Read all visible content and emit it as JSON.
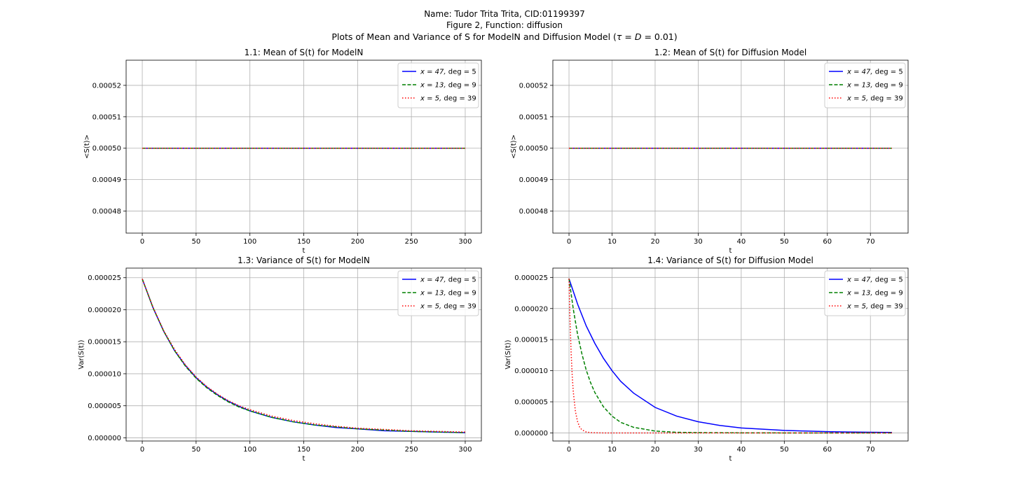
{
  "suptitle": {
    "line1": "Name: Tudor Trita Trita, CID:01199397",
    "line2": "Figure 2, Function: diffusion",
    "line3": "Plots of Mean and Variance of S for ModelN and Diffusion Model (τ = D = 0.01)"
  },
  "legend_labels": [
    "x = 47, deg = 5",
    "x = 13, deg = 9",
    "x = 5, deg = 39"
  ],
  "colors": {
    "blue": "#0000ff",
    "green": "#008000",
    "red": "#ff0000",
    "grid": "#b0b0b0"
  },
  "chart_data": [
    {
      "type": "line",
      "title": "1.1: Mean of S(t) for ModelN",
      "xlabel": "t",
      "ylabel": "<S(t)>",
      "xlim": [
        -15,
        315
      ],
      "ylim": [
        0.000473,
        0.000528
      ],
      "xticks": [
        0,
        50,
        100,
        150,
        200,
        250,
        300
      ],
      "xtick_labels": [
        "0",
        "50",
        "100",
        "150",
        "200",
        "250",
        "300"
      ],
      "yticks": [
        0.00048,
        0.00049,
        0.0005,
        0.00051,
        0.00052
      ],
      "ytick_labels": [
        "0.00048",
        "0.00049",
        "0.00050",
        "0.00051",
        "0.00052"
      ],
      "grid": true,
      "legend": "top-right",
      "series": [
        {
          "name": "x = 47, deg = 5",
          "color": "#0000ff",
          "style": "solid",
          "x": [
            0,
            50,
            100,
            150,
            200,
            250,
            300
          ],
          "y": [
            0.0005,
            0.0005,
            0.0005,
            0.0005,
            0.0005,
            0.0005,
            0.0005
          ]
        },
        {
          "name": "x = 13, deg = 9",
          "color": "#008000",
          "style": "dashed",
          "x": [
            0,
            50,
            100,
            150,
            200,
            250,
            300
          ],
          "y": [
            0.0005,
            0.0005,
            0.0005,
            0.0005,
            0.0005,
            0.0005,
            0.0005
          ]
        },
        {
          "name": "x = 5, deg = 39",
          "color": "#ff0000",
          "style": "dotted",
          "x": [
            0,
            50,
            100,
            150,
            200,
            250,
            300
          ],
          "y": [
            0.0005,
            0.0005,
            0.0005,
            0.0005,
            0.0005,
            0.0005,
            0.0005
          ]
        }
      ]
    },
    {
      "type": "line",
      "title": "1.2: Mean of S(t) for Diffusion Model",
      "xlabel": "t",
      "ylabel": "<S(t)>",
      "xlim": [
        -3.75,
        78.75
      ],
      "ylim": [
        0.000473,
        0.000528
      ],
      "xticks": [
        0,
        10,
        20,
        30,
        40,
        50,
        60,
        70
      ],
      "xtick_labels": [
        "0",
        "10",
        "20",
        "30",
        "40",
        "50",
        "60",
        "70"
      ],
      "yticks": [
        0.00048,
        0.00049,
        0.0005,
        0.00051,
        0.00052
      ],
      "ytick_labels": [
        "0.00048",
        "0.00049",
        "0.00050",
        "0.00051",
        "0.00052"
      ],
      "grid": true,
      "legend": "top-right",
      "series": [
        {
          "name": "x = 47, deg = 5",
          "color": "#0000ff",
          "style": "solid",
          "x": [
            0,
            25,
            50,
            75
          ],
          "y": [
            0.0005,
            0.0005,
            0.0005,
            0.0005
          ]
        },
        {
          "name": "x = 13, deg = 9",
          "color": "#008000",
          "style": "dashed",
          "x": [
            0,
            25,
            50,
            75
          ],
          "y": [
            0.0005,
            0.0005,
            0.0005,
            0.0005
          ]
        },
        {
          "name": "x = 5, deg = 39",
          "color": "#ff0000",
          "style": "dotted",
          "x": [
            0,
            25,
            50,
            75
          ],
          "y": [
            0.0005,
            0.0005,
            0.0005,
            0.0005
          ]
        }
      ]
    },
    {
      "type": "line",
      "title": "1.3: Variance of S(t) for ModelN",
      "xlabel": "t",
      "ylabel": "Var(S(t))",
      "xlim": [
        -15,
        315
      ],
      "ylim": [
        -5e-07,
        2.65e-05
      ],
      "xticks": [
        0,
        50,
        100,
        150,
        200,
        250,
        300
      ],
      "xtick_labels": [
        "0",
        "50",
        "100",
        "150",
        "200",
        "250",
        "300"
      ],
      "yticks": [
        0,
        5e-06,
        1e-05,
        1.5e-05,
        2e-05,
        2.5e-05
      ],
      "ytick_labels": [
        "0.000000",
        "0.000005",
        "0.000010",
        "0.000015",
        "0.000020",
        "0.000025"
      ],
      "grid": true,
      "legend": "top-right",
      "series": [
        {
          "name": "x = 47, deg = 5",
          "color": "#0000ff",
          "style": "solid",
          "x": [
            0,
            10,
            20,
            30,
            40,
            50,
            60,
            70,
            80,
            90,
            100,
            120,
            140,
            160,
            180,
            200,
            225,
            250,
            275,
            300
          ],
          "y": [
            2.48e-05,
            2.03e-05,
            1.66e-05,
            1.36e-05,
            1.13e-05,
            9.4e-06,
            7.9e-06,
            6.7e-06,
            5.7e-06,
            4.9e-06,
            4.2e-06,
            3.2e-06,
            2.5e-06,
            2e-06,
            1.6e-06,
            1.4e-06,
            1.1e-06,
            1e-06,
            9e-07,
            8e-07
          ]
        },
        {
          "name": "x = 13, deg = 9",
          "color": "#008000",
          "style": "dashed",
          "x": [
            0,
            10,
            20,
            30,
            40,
            50,
            60,
            70,
            80,
            90,
            100,
            120,
            140,
            160,
            180,
            200,
            225,
            250,
            275,
            300
          ],
          "y": [
            2.48e-05,
            2.03e-05,
            1.66e-05,
            1.36e-05,
            1.12e-05,
            9.3e-06,
            7.8e-06,
            6.6e-06,
            5.6e-06,
            4.8e-06,
            4.2e-06,
            3.2e-06,
            2.5e-06,
            2e-06,
            1.7e-06,
            1.4e-06,
            1.2e-06,
            1e-06,
            9e-07,
            8e-07
          ]
        },
        {
          "name": "x = 5, deg = 39",
          "color": "#ff0000",
          "style": "dotted",
          "x": [
            0,
            10,
            20,
            30,
            40,
            50,
            60,
            70,
            80,
            90,
            100,
            120,
            140,
            160,
            180,
            200,
            225,
            250,
            275,
            300
          ],
          "y": [
            2.48e-05,
            2.04e-05,
            1.67e-05,
            1.38e-05,
            1.14e-05,
            9.5e-06,
            8e-06,
            6.8e-06,
            5.8e-06,
            5e-06,
            4.4e-06,
            3.4e-06,
            2.7e-06,
            2.2e-06,
            1.8e-06,
            1.5e-06,
            1.3e-06,
            1.1e-06,
            1e-06,
            9e-07
          ]
        }
      ]
    },
    {
      "type": "line",
      "title": "1.4: Variance of S(t) for Diffusion Model",
      "xlabel": "t",
      "ylabel": "Var(S(t))",
      "xlim": [
        -3.75,
        78.75
      ],
      "ylim": [
        -1.3e-06,
        2.65e-05
      ],
      "xticks": [
        0,
        10,
        20,
        30,
        40,
        50,
        60,
        70
      ],
      "xtick_labels": [
        "0",
        "10",
        "20",
        "30",
        "40",
        "50",
        "60",
        "70"
      ],
      "yticks": [
        0,
        5e-06,
        1e-05,
        1.5e-05,
        2e-05,
        2.5e-05
      ],
      "ytick_labels": [
        "0.000000",
        "0.000005",
        "0.000010",
        "0.000015",
        "0.000020",
        "0.000025"
      ],
      "grid": true,
      "legend": "top-right",
      "series": [
        {
          "name": "x = 47, deg = 5",
          "color": "#0000ff",
          "style": "solid",
          "x": [
            0,
            2,
            4,
            6,
            8,
            10,
            12,
            15,
            20,
            25,
            30,
            35,
            40,
            45,
            50,
            55,
            60,
            65,
            70,
            75
          ],
          "y": [
            2.48e-05,
            2.07e-05,
            1.72e-05,
            1.44e-05,
            1.2e-05,
            1e-05,
            8.3e-06,
            6.4e-06,
            4.1e-06,
            2.7e-06,
            1.8e-06,
            1.2e-06,
            8e-07,
            6e-07,
            4e-07,
            3e-07,
            2e-07,
            1.5e-07,
            1e-07,
            8e-08
          ]
        },
        {
          "name": "x = 13, deg = 9",
          "color": "#008000",
          "style": "dashed",
          "x": [
            0,
            1,
            2,
            3,
            4,
            5,
            6,
            8,
            10,
            12,
            15,
            20,
            25,
            30,
            40,
            50,
            60,
            75
          ],
          "y": [
            2.48e-05,
            1.99e-05,
            1.58e-05,
            1.27e-05,
            1.01e-05,
            8.1e-06,
            6.5e-06,
            4.2e-06,
            2.7e-06,
            1.7e-06,
            9e-07,
            3e-07,
            1e-07,
            5e-08,
            1e-08,
            0,
            0,
            0
          ]
        },
        {
          "name": "x = 5, deg = 39",
          "color": "#ff0000",
          "style": "dotted",
          "x": [
            0,
            0.25,
            0.5,
            0.75,
            1,
            1.5,
            2,
            2.5,
            3,
            4,
            5,
            6,
            8,
            10,
            20,
            40,
            75
          ],
          "y": [
            2.48e-05,
            1.78e-05,
            1.28e-05,
            9.2e-06,
            6.6e-06,
            3.4e-06,
            1.8e-06,
            9e-07,
            5e-07,
            1.5e-07,
            5e-08,
            2e-08,
            0,
            0,
            0,
            0,
            0
          ]
        }
      ]
    }
  ]
}
